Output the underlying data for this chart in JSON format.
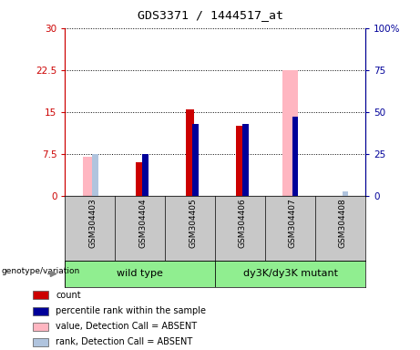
{
  "title": "GDS3371 / 1444517_at",
  "samples": [
    "GSM304403",
    "GSM304404",
    "GSM304405",
    "GSM304406",
    "GSM304407",
    "GSM304408"
  ],
  "count_red": [
    0,
    6.0,
    15.5,
    12.5,
    0,
    0
  ],
  "percentile_blue_pct": [
    0,
    25,
    43,
    43,
    47,
    0
  ],
  "value_absent_pink": [
    7.0,
    0,
    0,
    0,
    22.5,
    0
  ],
  "rank_absent_lightblue_pct": [
    25,
    0,
    0,
    0,
    0,
    3
  ],
  "ylim_left": [
    0,
    30
  ],
  "ylim_right": [
    0,
    100
  ],
  "yticks_left": [
    0,
    7.5,
    15,
    22.5,
    30
  ],
  "yticks_right": [
    0,
    25,
    50,
    75,
    100
  ],
  "ytick_labels_left": [
    "0",
    "7.5",
    "15",
    "22.5",
    "30"
  ],
  "ytick_labels_right": [
    "0",
    "25",
    "50",
    "75",
    "100%"
  ],
  "color_red": "#CC0000",
  "color_blue": "#000099",
  "color_pink": "#FFB6C1",
  "color_lightblue": "#B0C4DE",
  "color_gray_bg": "#C8C8C8",
  "color_green": "#90EE90",
  "legend_items": [
    {
      "label": "count",
      "color": "#CC0000"
    },
    {
      "label": "percentile rank within the sample",
      "color": "#000099"
    },
    {
      "label": "value, Detection Call = ABSENT",
      "color": "#FFB6C1"
    },
    {
      "label": "rank, Detection Call = ABSENT",
      "color": "#B0C4DE"
    }
  ],
  "genotype_label": "genotype/variation",
  "wt_label": "wild type",
  "mut_label": "dy3K/dy3K mutant"
}
